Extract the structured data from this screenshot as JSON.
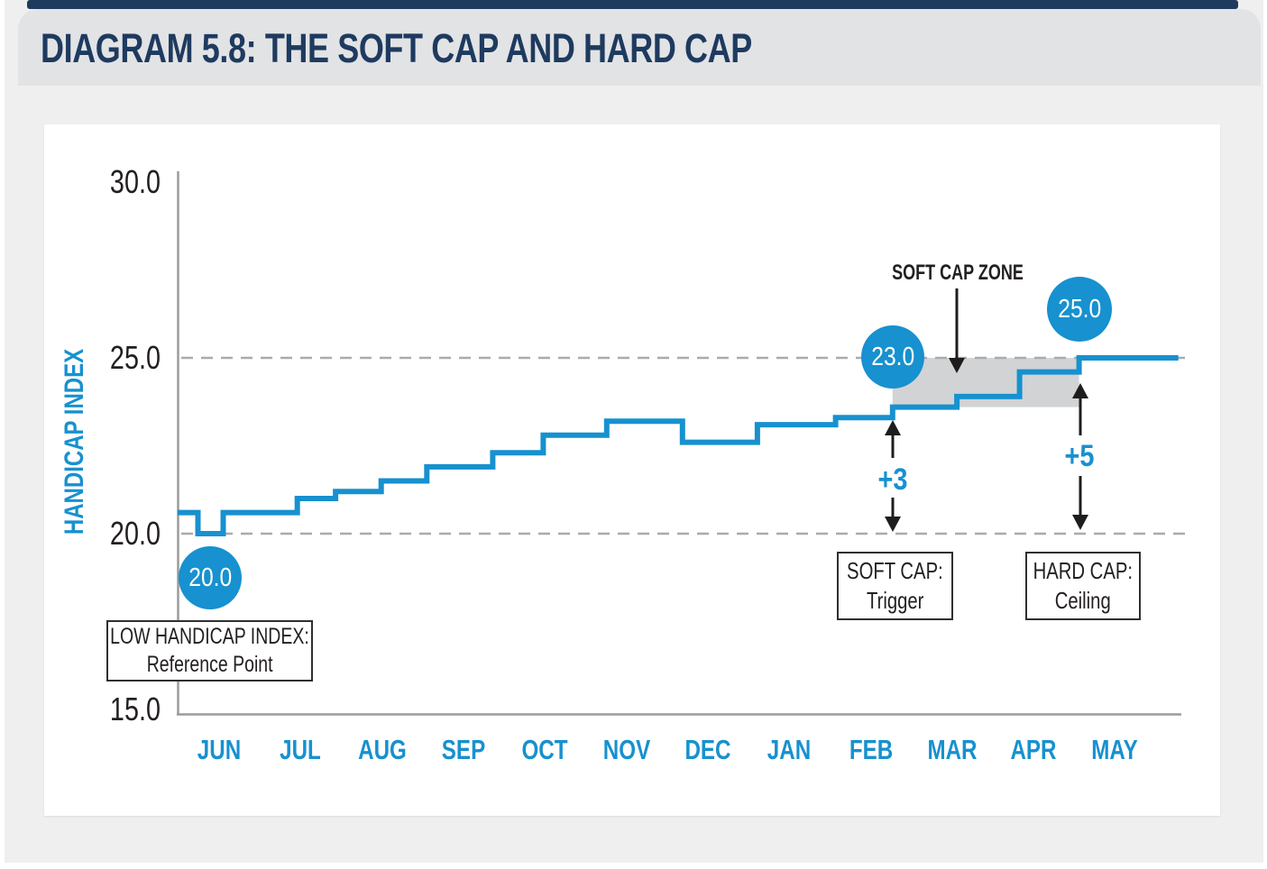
{
  "header": {
    "title": "DIAGRAM 5.8: THE SOFT CAP AND HARD CAP"
  },
  "chart_data": {
    "type": "step-line",
    "ylabel": "HANDICAP INDEX",
    "ylim": [
      15.0,
      30.0
    ],
    "ytick_labels": [
      "30.0",
      "25.0",
      "20.0",
      "15.0"
    ],
    "ytick_values": [
      30.0,
      25.0,
      20.0,
      15.0
    ],
    "gridlines_dashed_at": [
      25.0,
      20.0
    ],
    "grid": "dashed horizontal at 25.0 and 20.0 only",
    "categories": [
      "JUN",
      "JUL",
      "AUG",
      "SEP",
      "OCT",
      "NOV",
      "DEC",
      "JAN",
      "FEB",
      "MAR",
      "APR",
      "MAY"
    ],
    "x_unit": "months, JUN = 0",
    "series": [
      {
        "name": "Handicap Index",
        "steps": [
          {
            "x": -0.51,
            "value": 20.6
          },
          {
            "x": -0.26,
            "value": 20.0
          },
          {
            "x": 0.05,
            "value": 20.6
          },
          {
            "x": 0.96,
            "value": 21.0
          },
          {
            "x": 1.43,
            "value": 21.2
          },
          {
            "x": 1.99,
            "value": 21.5
          },
          {
            "x": 2.55,
            "value": 21.9
          },
          {
            "x": 3.36,
            "value": 22.3
          },
          {
            "x": 3.98,
            "value": 22.8
          },
          {
            "x": 4.76,
            "value": 23.2
          },
          {
            "x": 5.69,
            "value": 22.6
          },
          {
            "x": 6.61,
            "value": 23.1
          },
          {
            "x": 7.57,
            "value": 23.3
          },
          {
            "x": 8.27,
            "value": 23.6
          },
          {
            "x": 9.06,
            "value": 23.9
          },
          {
            "x": 9.83,
            "value": 24.6
          },
          {
            "x": 10.56,
            "value": 25.0
          }
        ],
        "x_end": 11.78
      }
    ],
    "soft_cap_zone": {
      "x_start": 8.27,
      "x_end": 10.56,
      "value_top": 25.0,
      "value_bottom": 23.6
    },
    "annotations": {
      "zone_label": "SOFT CAP ZONE",
      "low_point": {
        "label": "20.0"
      },
      "trigger_point": {
        "label": "23.0"
      },
      "ceiling_point": {
        "label": "25.0"
      },
      "plus3": "+3",
      "plus5": "+5",
      "low_box": {
        "line1": "LOW HANDICAP INDEX:",
        "line2": "Reference Point"
      },
      "soft_box": {
        "line1": "SOFT CAP:",
        "line2": "Trigger"
      },
      "hard_box": {
        "line1": "HARD CAP:",
        "line2": "Ceiling"
      }
    },
    "colors": {
      "line": "#1791cf",
      "zone": "#d2d3d5",
      "axis": "#9b9b9b",
      "dash": "#ababab",
      "arrow": "#1f1c1d",
      "title_navy": "#1e3a5f"
    },
    "legend": "none"
  }
}
